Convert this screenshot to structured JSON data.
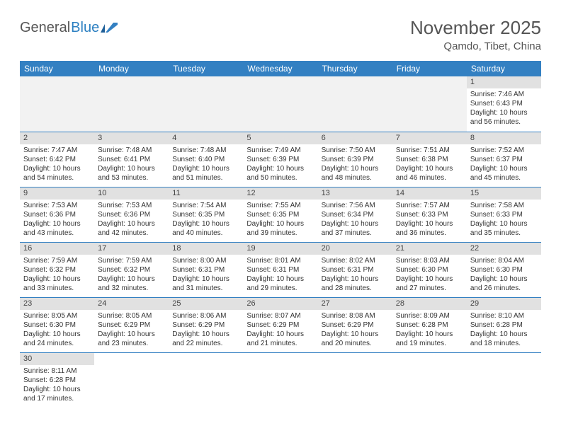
{
  "logo": {
    "part1": "General",
    "part2": "Blue"
  },
  "title": "November 2025",
  "location": "Qamdo, Tibet, China",
  "colors": {
    "header_bg": "#3380c2",
    "header_text": "#ffffff",
    "daynum_bg": "#e1e1e1",
    "blank_bg": "#f2f2f2",
    "border": "#3380c2",
    "title_color": "#555555",
    "logo_blue": "#2b7fc1"
  },
  "weekdays": [
    "Sunday",
    "Monday",
    "Tuesday",
    "Wednesday",
    "Thursday",
    "Friday",
    "Saturday"
  ],
  "weeks": [
    [
      null,
      null,
      null,
      null,
      null,
      null,
      {
        "n": "1",
        "sr": "Sunrise: 7:46 AM",
        "ss": "Sunset: 6:43 PM",
        "d1": "Daylight: 10 hours",
        "d2": "and 56 minutes."
      }
    ],
    [
      {
        "n": "2",
        "sr": "Sunrise: 7:47 AM",
        "ss": "Sunset: 6:42 PM",
        "d1": "Daylight: 10 hours",
        "d2": "and 54 minutes."
      },
      {
        "n": "3",
        "sr": "Sunrise: 7:48 AM",
        "ss": "Sunset: 6:41 PM",
        "d1": "Daylight: 10 hours",
        "d2": "and 53 minutes."
      },
      {
        "n": "4",
        "sr": "Sunrise: 7:48 AM",
        "ss": "Sunset: 6:40 PM",
        "d1": "Daylight: 10 hours",
        "d2": "and 51 minutes."
      },
      {
        "n": "5",
        "sr": "Sunrise: 7:49 AM",
        "ss": "Sunset: 6:39 PM",
        "d1": "Daylight: 10 hours",
        "d2": "and 50 minutes."
      },
      {
        "n": "6",
        "sr": "Sunrise: 7:50 AM",
        "ss": "Sunset: 6:39 PM",
        "d1": "Daylight: 10 hours",
        "d2": "and 48 minutes."
      },
      {
        "n": "7",
        "sr": "Sunrise: 7:51 AM",
        "ss": "Sunset: 6:38 PM",
        "d1": "Daylight: 10 hours",
        "d2": "and 46 minutes."
      },
      {
        "n": "8",
        "sr": "Sunrise: 7:52 AM",
        "ss": "Sunset: 6:37 PM",
        "d1": "Daylight: 10 hours",
        "d2": "and 45 minutes."
      }
    ],
    [
      {
        "n": "9",
        "sr": "Sunrise: 7:53 AM",
        "ss": "Sunset: 6:36 PM",
        "d1": "Daylight: 10 hours",
        "d2": "and 43 minutes."
      },
      {
        "n": "10",
        "sr": "Sunrise: 7:53 AM",
        "ss": "Sunset: 6:36 PM",
        "d1": "Daylight: 10 hours",
        "d2": "and 42 minutes."
      },
      {
        "n": "11",
        "sr": "Sunrise: 7:54 AM",
        "ss": "Sunset: 6:35 PM",
        "d1": "Daylight: 10 hours",
        "d2": "and 40 minutes."
      },
      {
        "n": "12",
        "sr": "Sunrise: 7:55 AM",
        "ss": "Sunset: 6:35 PM",
        "d1": "Daylight: 10 hours",
        "d2": "and 39 minutes."
      },
      {
        "n": "13",
        "sr": "Sunrise: 7:56 AM",
        "ss": "Sunset: 6:34 PM",
        "d1": "Daylight: 10 hours",
        "d2": "and 37 minutes."
      },
      {
        "n": "14",
        "sr": "Sunrise: 7:57 AM",
        "ss": "Sunset: 6:33 PM",
        "d1": "Daylight: 10 hours",
        "d2": "and 36 minutes."
      },
      {
        "n": "15",
        "sr": "Sunrise: 7:58 AM",
        "ss": "Sunset: 6:33 PM",
        "d1": "Daylight: 10 hours",
        "d2": "and 35 minutes."
      }
    ],
    [
      {
        "n": "16",
        "sr": "Sunrise: 7:59 AM",
        "ss": "Sunset: 6:32 PM",
        "d1": "Daylight: 10 hours",
        "d2": "and 33 minutes."
      },
      {
        "n": "17",
        "sr": "Sunrise: 7:59 AM",
        "ss": "Sunset: 6:32 PM",
        "d1": "Daylight: 10 hours",
        "d2": "and 32 minutes."
      },
      {
        "n": "18",
        "sr": "Sunrise: 8:00 AM",
        "ss": "Sunset: 6:31 PM",
        "d1": "Daylight: 10 hours",
        "d2": "and 31 minutes."
      },
      {
        "n": "19",
        "sr": "Sunrise: 8:01 AM",
        "ss": "Sunset: 6:31 PM",
        "d1": "Daylight: 10 hours",
        "d2": "and 29 minutes."
      },
      {
        "n": "20",
        "sr": "Sunrise: 8:02 AM",
        "ss": "Sunset: 6:31 PM",
        "d1": "Daylight: 10 hours",
        "d2": "and 28 minutes."
      },
      {
        "n": "21",
        "sr": "Sunrise: 8:03 AM",
        "ss": "Sunset: 6:30 PM",
        "d1": "Daylight: 10 hours",
        "d2": "and 27 minutes."
      },
      {
        "n": "22",
        "sr": "Sunrise: 8:04 AM",
        "ss": "Sunset: 6:30 PM",
        "d1": "Daylight: 10 hours",
        "d2": "and 26 minutes."
      }
    ],
    [
      {
        "n": "23",
        "sr": "Sunrise: 8:05 AM",
        "ss": "Sunset: 6:30 PM",
        "d1": "Daylight: 10 hours",
        "d2": "and 24 minutes."
      },
      {
        "n": "24",
        "sr": "Sunrise: 8:05 AM",
        "ss": "Sunset: 6:29 PM",
        "d1": "Daylight: 10 hours",
        "d2": "and 23 minutes."
      },
      {
        "n": "25",
        "sr": "Sunrise: 8:06 AM",
        "ss": "Sunset: 6:29 PM",
        "d1": "Daylight: 10 hours",
        "d2": "and 22 minutes."
      },
      {
        "n": "26",
        "sr": "Sunrise: 8:07 AM",
        "ss": "Sunset: 6:29 PM",
        "d1": "Daylight: 10 hours",
        "d2": "and 21 minutes."
      },
      {
        "n": "27",
        "sr": "Sunrise: 8:08 AM",
        "ss": "Sunset: 6:29 PM",
        "d1": "Daylight: 10 hours",
        "d2": "and 20 minutes."
      },
      {
        "n": "28",
        "sr": "Sunrise: 8:09 AM",
        "ss": "Sunset: 6:28 PM",
        "d1": "Daylight: 10 hours",
        "d2": "and 19 minutes."
      },
      {
        "n": "29",
        "sr": "Sunrise: 8:10 AM",
        "ss": "Sunset: 6:28 PM",
        "d1": "Daylight: 10 hours",
        "d2": "and 18 minutes."
      }
    ],
    [
      {
        "n": "30",
        "sr": "Sunrise: 8:11 AM",
        "ss": "Sunset: 6:28 PM",
        "d1": "Daylight: 10 hours",
        "d2": "and 17 minutes."
      },
      null,
      null,
      null,
      null,
      null,
      null
    ]
  ]
}
